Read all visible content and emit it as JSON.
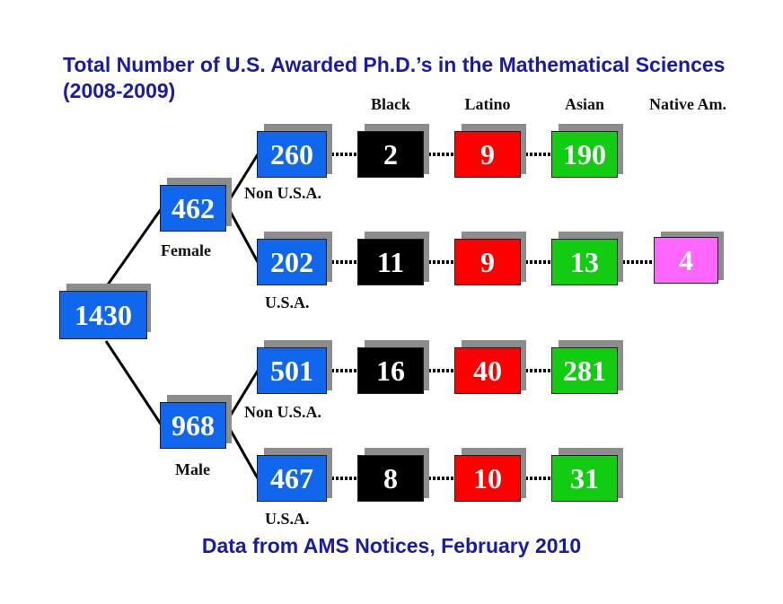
{
  "title": "Total Number of U.S. Awarded Ph.D.’s in the Mathematical Sciences (2008-2009)",
  "footer": "Data from AMS Notices, February 2010",
  "columns": [
    "Black",
    "Latino",
    "Asian",
    "Native Am."
  ],
  "total": "1430",
  "genders": [
    {
      "label": "Female",
      "count": "462",
      "groups": [
        {
          "label": "Non U.S.A.",
          "count": "260",
          "black": "2",
          "latino": "9",
          "asian": "190",
          "native": ""
        },
        {
          "label": "U.S.A.",
          "count": "202",
          "black": "11",
          "latino": "9",
          "asian": "13",
          "native": "4"
        }
      ]
    },
    {
      "label": "Male",
      "count": "968",
      "groups": [
        {
          "label": "Non U.S.A.",
          "count": "501",
          "black": "16",
          "latino": "40",
          "asian": "281",
          "native": ""
        },
        {
          "label": "U.S.A.",
          "count": "467",
          "black": "8",
          "latino": "10",
          "asian": "31",
          "native": ""
        }
      ]
    }
  ],
  "colors": {
    "title": "#1a1aa6",
    "blue": "#1166ee",
    "black": "#000000",
    "red": "#ff0000",
    "green": "#11cc11",
    "pink": "#ff66ff"
  }
}
